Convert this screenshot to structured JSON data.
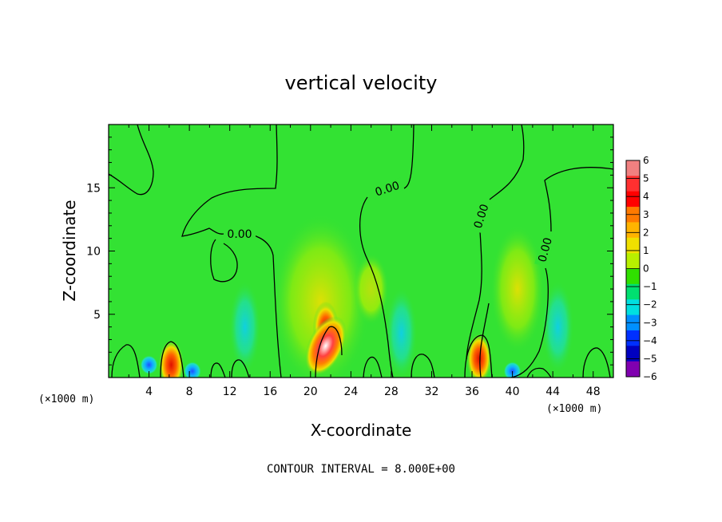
{
  "chart_data": {
    "type": "heatmap",
    "title": "vertical velocity",
    "xlabel": "X-coordinate",
    "ylabel": "Z-coordinate",
    "x_unit": "(×1000 m)",
    "x_unit_right": "(×1000 m)",
    "xlim": [
      0,
      50
    ],
    "ylim": [
      0,
      20
    ],
    "xticks": [
      "4",
      "8",
      "12",
      "16",
      "20",
      "24",
      "28",
      "32",
      "36",
      "40",
      "44",
      "48"
    ],
    "yticks": [
      "5",
      "10",
      "15"
    ],
    "contour_interval_text": "CONTOUR INTERVAL = 8.000E+00",
    "contour_labels": [
      "0.00",
      "0.00",
      "0.00",
      "0.00"
    ],
    "colorbar": {
      "ticks": [
        "6",
        "5",
        "4",
        "3",
        "2",
        "1",
        "0",
        "−1",
        "−2",
        "−3",
        "−4",
        "−5",
        "−6"
      ],
      "colors": [
        "#f08080",
        "#ff3030",
        "#ff0000",
        "#ff7a00",
        "#ffb400",
        "#f0e000",
        "#b8f000",
        "#30e000",
        "#00e070",
        "#00e0e0",
        "#0090ff",
        "#0030ff",
        "#0000c0",
        "#8000b0"
      ]
    },
    "background_color": "#33e233",
    "features": [
      {
        "x": 21.5,
        "z": 2.5,
        "value": 6,
        "color": "#ffffff",
        "note": "main updraft core"
      },
      {
        "x": 21.5,
        "z": 4.0,
        "value": 4,
        "color": "#ff2000"
      },
      {
        "x": 6.2,
        "z": 1.0,
        "value": 4,
        "color": "#ff3000"
      },
      {
        "x": 36.7,
        "z": 1.5,
        "value": 4,
        "color": "#ff4000"
      },
      {
        "x": 13.5,
        "z": 4.0,
        "value": -2,
        "color": "#20d0d0"
      },
      {
        "x": 29.0,
        "z": 3.5,
        "value": -1.5,
        "color": "#20d8c0"
      },
      {
        "x": 44.5,
        "z": 4.0,
        "value": -1.5,
        "color": "#20d8c0"
      },
      {
        "x": 4.0,
        "z": 1.0,
        "value": -3,
        "color": "#2090ff"
      },
      {
        "x": 8.3,
        "z": 0.5,
        "value": -3,
        "color": "#2080ff"
      },
      {
        "x": 40.0,
        "z": 0.5,
        "value": -4,
        "color": "#2040ff"
      }
    ]
  }
}
